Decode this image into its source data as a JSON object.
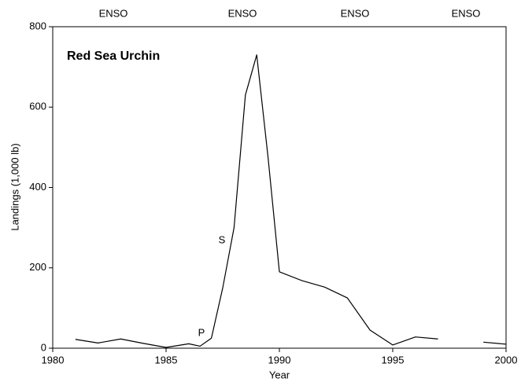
{
  "chart_data": {
    "type": "line",
    "xlabel": "Year",
    "ylabel": "Landings (1,000 lb)",
    "annotations": [
      "Red Sea Urchin",
      "P",
      "S",
      "ENSO",
      "ENSO",
      "ENSO",
      "ENSO"
    ],
    "x": [
      1981,
      1982,
      1983,
      1984,
      1985,
      1986,
      1986.5,
      1987,
      1987.5,
      1988,
      1988.5,
      1989,
      1989.5,
      1990,
      1991,
      1992,
      1993,
      1994,
      1995,
      1996,
      1997,
      1998,
      1999,
      2000
    ],
    "series": [
      {
        "name": "Red Sea Urchin",
        "color": "#000000",
        "values": [
          22,
          13,
          23,
          12,
          2,
          11,
          5,
          25,
          150,
          300,
          630,
          730,
          475,
          190,
          168,
          152,
          125,
          45,
          8,
          28,
          23,
          null,
          15,
          10
        ]
      }
    ],
    "xlim": [
      1980,
      2000
    ],
    "xticks": [
      1980,
      1985,
      1990,
      1995,
      2000
    ],
    "ylim": [
      0,
      800
    ],
    "yticks": [
      0,
      200,
      400,
      600,
      800
    ]
  }
}
